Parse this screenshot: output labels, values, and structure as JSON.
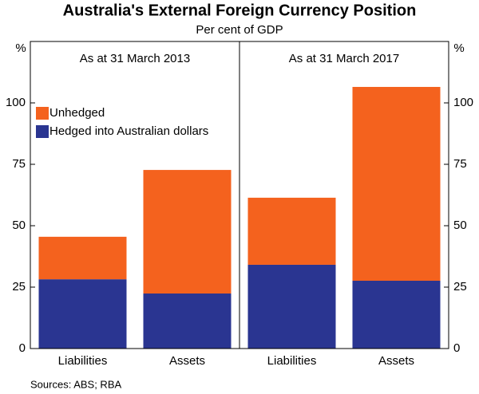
{
  "chart_data": {
    "type": "bar",
    "stacked": true,
    "title": "Australia's External Foreign Currency Position",
    "subtitle": "Per cent of GDP",
    "ylabel": "%",
    "y2label": "%",
    "ylim": [
      0,
      125
    ],
    "yticks": [
      0,
      25,
      50,
      75,
      100
    ],
    "y2lim": [
      0,
      125
    ],
    "y2ticks": [
      0,
      25,
      50,
      75,
      100
    ],
    "legend": "upper left",
    "series": [
      {
        "name": "Unhedged",
        "color": "#f4621e"
      },
      {
        "name": "Hedged into Australian dollars",
        "color": "#2a3591"
      }
    ],
    "panels": [
      {
        "title": "As at 31 March 2013",
        "categories": [
          "Liabilities",
          "Assets"
        ],
        "values": [
          [
            17.3,
            50.3
          ],
          [
            28.2,
            22.4
          ]
        ]
      },
      {
        "title": "As at 31 March 2017",
        "categories": [
          "Liabilities",
          "Assets"
        ],
        "values": [
          [
            27.3,
            78.9
          ],
          [
            34.1,
            27.6
          ]
        ]
      }
    ],
    "source": "Sources: ABS; RBA"
  }
}
